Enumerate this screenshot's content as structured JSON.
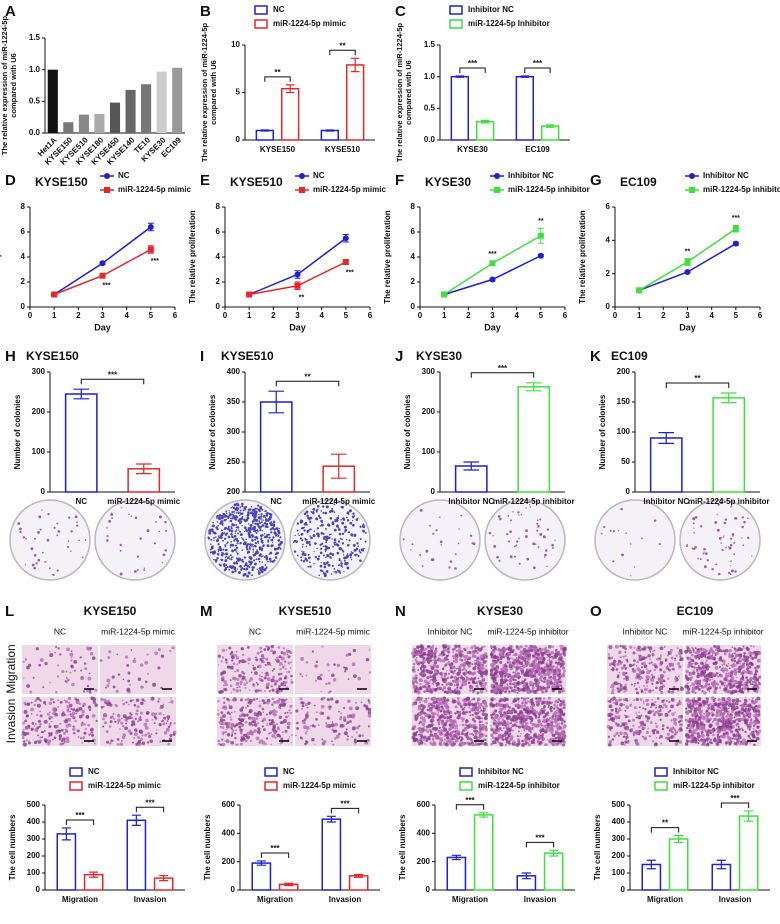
{
  "chart_data": [
    {
      "panel": "A",
      "type": "bar",
      "bar_fill": "solid",
      "ylabel": [
        "The relative expression of miR-1224-5p",
        "compared with U6"
      ],
      "categories": [
        "Het1A",
        "KYSE150",
        "KYSE510",
        "KYSE180",
        "KYSE450",
        "KYSE140",
        "TE10",
        "KYSE30",
        "EC109"
      ],
      "values": [
        1.0,
        0.17,
        0.29,
        0.3,
        0.48,
        0.68,
        0.77,
        0.97,
        1.03
      ],
      "colors": [
        "#111111",
        "#777777",
        "#888888",
        "#aaaaaa",
        "#555555",
        "#666666",
        "#777777",
        "#cccccc",
        "#999999"
      ],
      "ylim": [
        0,
        1.5
      ],
      "yticks": [
        {
          "value": 0,
          "label": "0.0"
        },
        0.5,
        {
          "value": 1,
          "label": "1.0"
        },
        1.5
      ]
    },
    {
      "panel": "B",
      "type": "bar",
      "bar_fill": "hollow",
      "ylabel": [
        "The relative expression of miR-1224-5p",
        "compared with U6"
      ],
      "categories": [
        "KYSE150",
        "KYSE510"
      ],
      "series": [
        {
          "name": "NC",
          "color": "#1f1fd6",
          "values": [
            1,
            1
          ],
          "errors": [
            0.05,
            0.05
          ]
        },
        {
          "name": "miR-1224-5p mimic",
          "color": "#e8262a",
          "values": [
            5.4,
            7.9
          ],
          "errors": [
            0.4,
            0.7
          ]
        }
      ],
      "significance": [
        "**",
        "**"
      ],
      "ylim": [
        0,
        10
      ],
      "yticks": [
        0,
        5,
        10
      ]
    },
    {
      "panel": "C",
      "type": "bar",
      "bar_fill": "hollow",
      "ylabel": [
        "The relative expression of miR-1224-5p",
        "compared with U6"
      ],
      "categories": [
        "KYSE30",
        "EC109"
      ],
      "series": [
        {
          "name": "Inhibitor NC",
          "color": "#1f1fd6",
          "values": [
            1,
            1
          ],
          "errors": [
            0.01,
            0.01
          ]
        },
        {
          "name": "miR-1224-5p Inhibitor",
          "color": "#3ee03e",
          "values": [
            0.29,
            0.22
          ],
          "errors": [
            0.02,
            0.02
          ]
        }
      ],
      "significance": [
        "***",
        "***"
      ],
      "ylim": [
        0,
        1.5
      ],
      "yticks": [
        {
          "value": 0,
          "label": "0.0"
        },
        0.5,
        {
          "value": 1,
          "label": "1.0"
        },
        1.5
      ]
    },
    {
      "panel": "D",
      "type": "line",
      "title": "KYSE150",
      "xlabel": "Day",
      "ylabel": "The relative proliferation",
      "x": [
        1,
        3,
        5
      ],
      "series": [
        {
          "name": "NC",
          "color": "#1f1fd6",
          "marker": "circle",
          "values": [
            1.0,
            3.5,
            6.4
          ],
          "errors": [
            0.05,
            0.1,
            0.3
          ]
        },
        {
          "name": "miR-1224-5p mimic",
          "color": "#e8262a",
          "marker": "square",
          "values": [
            1.0,
            2.5,
            4.6
          ],
          "errors": [
            0.05,
            0.15,
            0.3
          ]
        }
      ],
      "annotations": [
        {
          "x": 3,
          "label": "***"
        },
        {
          "x": 5,
          "label": "***"
        }
      ],
      "xlim": [
        0,
        6
      ],
      "xticks": [
        0,
        1,
        2,
        3,
        4,
        5,
        6
      ],
      "ylim": [
        0,
        8
      ],
      "yticks": [
        0,
        2,
        4,
        6,
        8
      ]
    },
    {
      "panel": "E",
      "type": "line",
      "title": "KYSE510",
      "xlabel": "Day",
      "ylabel": "The relative proliferation",
      "x": [
        1,
        3,
        5
      ],
      "series": [
        {
          "name": "NC",
          "color": "#1f1fd6",
          "marker": "circle",
          "values": [
            1.0,
            2.6,
            5.5
          ],
          "errors": [
            0.05,
            0.3,
            0.3
          ]
        },
        {
          "name": "miR-1224-5p mimic",
          "color": "#e8262a",
          "marker": "square",
          "values": [
            1.0,
            1.7,
            3.6
          ],
          "errors": [
            0.05,
            0.3,
            0.2
          ]
        }
      ],
      "annotations": [
        {
          "x": 3,
          "label": "**"
        },
        {
          "x": 5,
          "label": "***"
        }
      ],
      "xlim": [
        0,
        6
      ],
      "xticks": [
        0,
        1,
        2,
        3,
        4,
        5,
        6
      ],
      "ylim": [
        0,
        8
      ],
      "yticks": [
        0,
        2,
        4,
        6,
        8
      ]
    },
    {
      "panel": "F",
      "type": "line",
      "title": "KYSE30",
      "xlabel": "Day",
      "ylabel": "The relative proliferation",
      "x": [
        1,
        3,
        5
      ],
      "series": [
        {
          "name": "Inhibitor NC",
          "color": "#1f1fd6",
          "marker": "circle",
          "values": [
            1.0,
            2.2,
            4.1
          ],
          "errors": [
            0.05,
            0.1,
            0.1
          ]
        },
        {
          "name": "miR-1224-5p inhibitor",
          "color": "#3ee03e",
          "marker": "square",
          "values": [
            1.0,
            3.5,
            5.7
          ],
          "errors": [
            0.05,
            0.15,
            0.6
          ]
        }
      ],
      "annotations": [
        {
          "x": 3,
          "label": "***"
        },
        {
          "x": 5,
          "label": "**"
        }
      ],
      "xlim": [
        0,
        6
      ],
      "xticks": [
        0,
        1,
        2,
        3,
        4,
        5,
        6
      ],
      "ylim": [
        0,
        8
      ],
      "yticks": [
        0,
        2,
        4,
        6,
        8
      ]
    },
    {
      "panel": "G",
      "type": "line",
      "title": "EC109",
      "xlabel": "Day",
      "ylabel": "The relative proliferation",
      "x": [
        1,
        3,
        5
      ],
      "series": [
        {
          "name": "Inhibitor NC",
          "color": "#1f1fd6",
          "marker": "circle",
          "values": [
            1.0,
            2.1,
            3.8
          ],
          "errors": [
            0.05,
            0.05,
            0.1
          ]
        },
        {
          "name": "miR-1224-5p inhibitor",
          "color": "#3ee03e",
          "marker": "square",
          "values": [
            1.0,
            2.7,
            4.7
          ],
          "errors": [
            0.05,
            0.2,
            0.2
          ]
        }
      ],
      "annotations": [
        {
          "x": 3,
          "label": "**"
        },
        {
          "x": 5,
          "label": "***"
        }
      ],
      "xlim": [
        0,
        6
      ],
      "xticks": [
        0,
        1,
        2,
        3,
        4,
        5,
        6
      ],
      "ylim": [
        0,
        6
      ],
      "yticks": [
        0,
        2,
        4,
        6
      ]
    },
    {
      "panel": "H",
      "type": "bar",
      "bar_fill": "hollow",
      "title": "KYSE150",
      "ylabel": "Number of colonies",
      "categories": [
        "NC",
        "miR-1224-5p mimic"
      ],
      "values": [
        245,
        58
      ],
      "errors": [
        12,
        12
      ],
      "colors": [
        "#1f1fd6",
        "#e8262a"
      ],
      "significance": "***",
      "ylim": [
        0,
        300
      ],
      "yticks": [
        0,
        100,
        200,
        300
      ]
    },
    {
      "panel": "I",
      "type": "bar",
      "bar_fill": "hollow",
      "title": "KYSE510",
      "ylabel": "Number of colonies",
      "categories": [
        "NC",
        "miR-1224-5p mimic"
      ],
      "values": [
        350,
        243
      ],
      "errors": [
        18,
        20
      ],
      "colors": [
        "#1f1fd6",
        "#e8262a"
      ],
      "significance": "**",
      "ylim": [
        200,
        400
      ],
      "yticks": [
        200,
        250,
        300,
        350,
        400
      ]
    },
    {
      "panel": "J",
      "type": "bar",
      "bar_fill": "hollow",
      "title": "KYSE30",
      "ylabel": "Number of colonies",
      "categories": [
        "Inhibitor NC",
        "miR-1224-5p inhibitor"
      ],
      "values": [
        65,
        263
      ],
      "errors": [
        10,
        10
      ],
      "colors": [
        "#1f1fd6",
        "#3ee03e"
      ],
      "significance": "***",
      "ylim": [
        0,
        300
      ],
      "yticks": [
        0,
        100,
        200,
        300
      ]
    },
    {
      "panel": "K",
      "type": "bar",
      "bar_fill": "hollow",
      "title": "EC109",
      "ylabel": "Number of colonies",
      "categories": [
        "Inhibitor NC",
        "miR-1224-5p inhibitor"
      ],
      "values": [
        90,
        157
      ],
      "errors": [
        9,
        8
      ],
      "colors": [
        "#1f1fd6",
        "#3ee03e"
      ],
      "significance": "**",
      "ylim": [
        0,
        200
      ],
      "yticks": [
        0,
        50,
        100,
        150,
        200
      ]
    },
    {
      "panel": "L",
      "type": "bar",
      "bar_fill": "hollow",
      "title": "KYSE150",
      "image_rows": [
        "Migration",
        "Invasion"
      ],
      "image_columns": [
        "NC",
        "miR-1224-5p mimic"
      ],
      "ylabel": "The cell numbers",
      "categories": [
        "Migration",
        "Invasion"
      ],
      "series": [
        {
          "name": "NC",
          "color": "#1f1fd6",
          "values": [
            330,
            410
          ],
          "errors": [
            35,
            30
          ]
        },
        {
          "name": "miR-1224-5p mimic",
          "color": "#e8262a",
          "values": [
            90,
            70
          ],
          "errors": [
            15,
            15
          ]
        }
      ],
      "significance": [
        "***",
        "***"
      ],
      "ylim": [
        0,
        500
      ],
      "yticks": [
        0,
        100,
        200,
        300,
        400,
        500
      ]
    },
    {
      "panel": "M",
      "type": "bar",
      "bar_fill": "hollow",
      "title": "KYSE510",
      "image_columns": [
        "NC",
        "miR-1224-5p mimic"
      ],
      "ylabel": "The cell numbers",
      "categories": [
        "Migration",
        "Invasion"
      ],
      "series": [
        {
          "name": "NC",
          "color": "#1f1fd6",
          "values": [
            190,
            500
          ],
          "errors": [
            15,
            20
          ]
        },
        {
          "name": "miR-1224-5p mimic",
          "color": "#e8262a",
          "values": [
            40,
            100
          ],
          "errors": [
            8,
            10
          ]
        }
      ],
      "significance": [
        "***",
        "***"
      ],
      "ylim": [
        0,
        600
      ],
      "yticks": [
        0,
        200,
        400,
        600
      ]
    },
    {
      "panel": "N",
      "type": "bar",
      "bar_fill": "hollow",
      "title": "KYSE30",
      "image_columns": [
        "Inhibitor NC",
        "miR-1224-5p inhibitor"
      ],
      "ylabel": "The cell numbers",
      "categories": [
        "Migration",
        "Invasion"
      ],
      "series": [
        {
          "name": "Inhibitor NC",
          "color": "#1f1fd6",
          "values": [
            230,
            100
          ],
          "errors": [
            15,
            20
          ]
        },
        {
          "name": "miR-1224-5p inhibitor",
          "color": "#3ee03e",
          "values": [
            530,
            260
          ],
          "errors": [
            15,
            20
          ]
        }
      ],
      "significance": [
        "***",
        "***"
      ],
      "ylim": [
        0,
        600
      ],
      "yticks": [
        0,
        200,
        400,
        600
      ]
    },
    {
      "panel": "O",
      "type": "bar",
      "bar_fill": "hollow",
      "title": "EC109",
      "image_columns": [
        "Inhibitor NC",
        "miR-1224-5p inhibitor"
      ],
      "ylabel": "The cell numbers",
      "categories": [
        "Migration",
        "Invasion"
      ],
      "series": [
        {
          "name": "Inhibitor NC",
          "color": "#1f1fd6",
          "values": [
            150,
            150
          ],
          "errors": [
            25,
            25
          ]
        },
        {
          "name": "miR-1224-5p inhibitor",
          "color": "#3ee03e",
          "values": [
            300,
            435
          ],
          "errors": [
            20,
            30
          ]
        }
      ],
      "significance": [
        "**",
        "***"
      ],
      "ylim": [
        0,
        500
      ],
      "yticks": [
        0,
        100,
        200,
        300,
        400,
        500
      ]
    }
  ]
}
